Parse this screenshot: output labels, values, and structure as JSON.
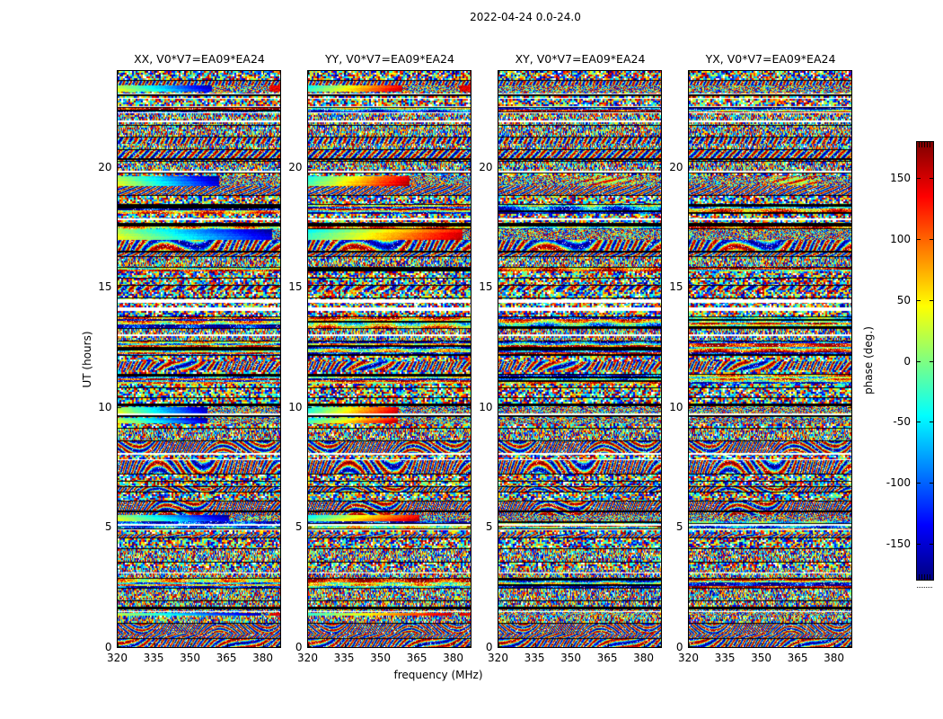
{
  "figure_title": "2022-04-24 0.0-24.0",
  "chart_data": {
    "type": "heatmap",
    "title": "2022-04-24 0.0-24.0",
    "xlabel": "frequency (MHz)",
    "ylabel": "UT (hours)",
    "x_range": [
      320,
      387
    ],
    "y_range": [
      0,
      24
    ],
    "x_ticks": [
      320,
      335,
      350,
      365,
      380
    ],
    "y_ticks": [
      0,
      5,
      10,
      15,
      20
    ],
    "grid": false,
    "colormap": "jet",
    "colorbar": {
      "label": "phase (deg.)",
      "ticks": [
        150,
        100,
        50,
        0,
        -50,
        -100,
        -150
      ],
      "range": [
        -180,
        180
      ],
      "gradient_top_to_bottom": [
        "#800000",
        "#ff0000",
        "#ff8000",
        "#ffff00",
        "#80ff80",
        "#00ffff",
        "#0080ff",
        "#0000ff",
        "#000080"
      ]
    },
    "panels": [
      {
        "pol": "XX",
        "title": "XX, V0*V7=EA09*EA24"
      },
      {
        "pol": "YY",
        "title": "YY, V0*V7=EA09*EA24"
      },
      {
        "pol": "XY",
        "title": "XY, V0*V7=EA09*EA24"
      },
      {
        "pol": "YX",
        "title": "YX, V0*V7=EA09*EA24"
      }
    ],
    "description": "Waterfall plots of interferometric visibility phase versus frequency (320-387 MHz) and time (0-24 h UT) for baseline V0*V7 = EA09*EA24 on 2022-04-24. Content is mostly random phase noise arranged in scan blocks separated by thin black and white rows; XX shows coherent cool (cyan-to-blue) phase-gradient scans and YY shows coherent warm (cyan-to-red) gradient scans at the same times; XY and YX stay noise-like with a faint warm smudge near 19.3 h.",
    "render": {
      "seed": 20220424,
      "white_rows": [
        {
          "ut": 23.06,
          "h": 1
        },
        {
          "ut": 22.55,
          "h": 1
        },
        {
          "ut": 21.9,
          "h": 2
        },
        {
          "ut": 19.82,
          "h": 2
        },
        {
          "ut": 17.82,
          "h": 2
        },
        {
          "ut": 14.4,
          "h": 4
        },
        {
          "ut": 14.08,
          "h": 4
        },
        {
          "ut": 12.98,
          "h": 2
        },
        {
          "ut": 9.7,
          "h": 2
        },
        {
          "ut": 8.05,
          "h": 2
        },
        {
          "ut": 5.1,
          "h": 2
        },
        {
          "ut": 3.1,
          "h": 1
        },
        {
          "ut": 1.5,
          "h": 1
        }
      ],
      "black_rows": [
        {
          "ut": 22.98,
          "h": 2
        },
        {
          "ut": 20.32,
          "h": 2
        },
        {
          "ut": 17.62,
          "h": 2
        },
        {
          "ut": 14.58,
          "h": 1
        },
        {
          "ut": 12.78,
          "h": 1
        },
        {
          "ut": 10.1,
          "h": 3
        },
        {
          "ut": 5.64,
          "h": 2
        },
        {
          "ut": 1.66,
          "h": 3
        }
      ],
      "scans": [
        {
          "ut": 23.3,
          "h": 7,
          "nr": 0.58,
          "red_tail": true,
          "smudge": false
        },
        {
          "ut": 19.45,
          "h": 11,
          "nr": 0.62,
          "red_tail": false,
          "smudge": true
        },
        {
          "ut": 17.2,
          "h": 12,
          "nr": 0.95,
          "red_tail": false,
          "smudge": false
        },
        {
          "ut": 9.88,
          "h": 7,
          "nr": 0.55,
          "red_tail": false,
          "smudge": false
        },
        {
          "ut": 9.45,
          "h": 6,
          "nr": 0.55,
          "red_tail": false,
          "smudge": false
        },
        {
          "ut": 5.38,
          "h": 7,
          "nr": 0.68,
          "red_tail": false,
          "smudge": false
        },
        {
          "ut": 1.38,
          "h": 3,
          "nr": 0.88,
          "red_tail": true,
          "smudge": false
        }
      ]
    }
  }
}
